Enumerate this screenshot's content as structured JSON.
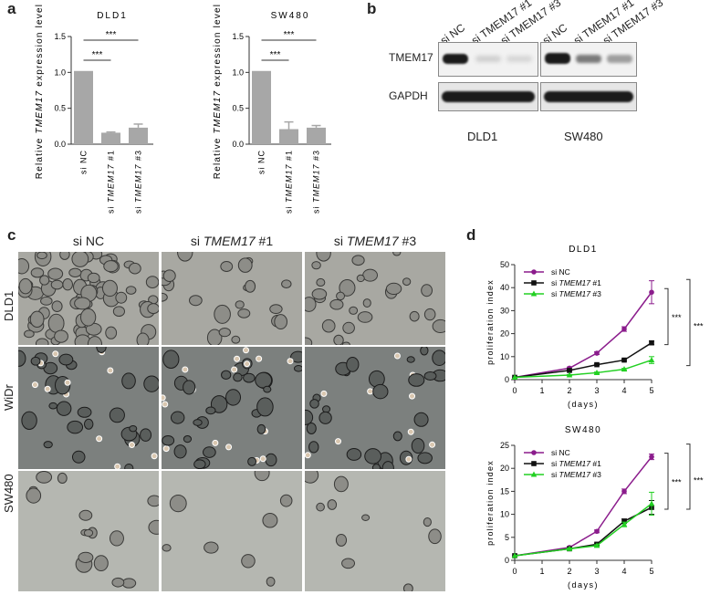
{
  "panel_letters": {
    "a": "a",
    "b": "b",
    "c": "c",
    "d": "d"
  },
  "panel_a": {
    "ylabel_prefix": "Relative ",
    "ylabel_gene": "TMEM17",
    "ylabel_suffix": " expression level",
    "sig": "***",
    "charts": [
      {
        "title": "DLD1"
      },
      {
        "title": "SW480"
      }
    ]
  },
  "panel_b": {
    "lane_labels": [
      "si NC",
      "si TMEM17 #1",
      "si TMEM17 #3"
    ],
    "row_labels": [
      "TMEM17",
      "GAPDH"
    ],
    "cell_lines": [
      "DLD1",
      "SW480"
    ]
  },
  "panel_c": {
    "columns": [
      {
        "prefix": "si ",
        "gene": "",
        "suffix": "NC"
      },
      {
        "prefix": "si ",
        "gene": "TMEM17",
        "suffix": " #1"
      },
      {
        "prefix": "si ",
        "gene": "TMEM17",
        "suffix": " #3"
      }
    ],
    "rows": [
      "DLD1",
      "WiDr",
      "SW480"
    ],
    "colors": {
      "dld1_bg": "#a8a8a2",
      "widr_bg": "#7c807e",
      "sw480_bg": "#b5b7b1"
    }
  },
  "panel_d": {
    "ylabel": "proliferation index",
    "xlabel": "(days)",
    "sig": "***",
    "legend": [
      {
        "prefix": "si ",
        "gene": "",
        "suffix": "NC"
      },
      {
        "prefix": "si ",
        "gene": "TMEM17",
        "suffix": " #1"
      },
      {
        "prefix": "si ",
        "gene": "TMEM17",
        "suffix": " #3"
      }
    ]
  },
  "chart_data": [
    {
      "type": "bar",
      "title": "DLD1",
      "categories": [
        "si NC",
        "si TMEM17 #1",
        "si TMEM17 #3"
      ],
      "values": [
        1.02,
        0.16,
        0.23
      ],
      "errors": [
        0,
        0.01,
        0.05
      ],
      "ylim": [
        0,
        1.5
      ],
      "yticks": [
        "0.0",
        "0.5",
        "1.0",
        "1.5"
      ],
      "color": "#a7a7a7"
    },
    {
      "type": "bar",
      "title": "SW480",
      "categories": [
        "si NC",
        "si TMEM17 #1",
        "si TMEM17 #3"
      ],
      "values": [
        1.02,
        0.21,
        0.23
      ],
      "errors": [
        0,
        0.1,
        0.03
      ],
      "ylim": [
        0,
        1.5
      ],
      "yticks": [
        "0.0",
        "0.5",
        "1.0",
        "1.5"
      ],
      "color": "#a7a7a7"
    },
    {
      "type": "line",
      "title": "DLD1",
      "x": [
        0,
        2,
        3,
        4,
        5
      ],
      "xticks": [
        "0",
        "1",
        "2",
        "3",
        "4",
        "5"
      ],
      "ylim": [
        0,
        50
      ],
      "yticks": [
        "0",
        "10",
        "20",
        "30",
        "40",
        "50"
      ],
      "series": [
        {
          "name": "si NC",
          "values": [
            1,
            5,
            11.5,
            22,
            38
          ],
          "errors": [
            0,
            0.5,
            0.6,
            1,
            5
          ],
          "color": "#8b1c8c",
          "marker": "circle"
        },
        {
          "name": "si TMEM17 #1",
          "values": [
            1,
            4,
            6.5,
            8.5,
            16
          ],
          "errors": [
            0,
            0.3,
            0.3,
            0.4,
            0.8
          ],
          "color": "#111111",
          "marker": "square"
        },
        {
          "name": "si TMEM17 #3",
          "values": [
            1,
            2,
            3,
            4.5,
            8.5
          ],
          "errors": [
            0,
            0.2,
            0.3,
            0.4,
            1.5
          ],
          "color": "#22d022",
          "marker": "triangle"
        }
      ]
    },
    {
      "type": "line",
      "title": "SW480",
      "x": [
        0,
        2,
        3,
        4,
        5
      ],
      "xticks": [
        "0",
        "1",
        "2",
        "3",
        "4",
        "5"
      ],
      "ylim": [
        0,
        25
      ],
      "yticks": [
        "0",
        "5",
        "10",
        "15",
        "20",
        "25"
      ],
      "series": [
        {
          "name": "si NC",
          "values": [
            1,
            2.8,
            6.3,
            15,
            22.5
          ],
          "errors": [
            0,
            0.2,
            0.3,
            0.5,
            0.6
          ],
          "color": "#8b1c8c",
          "marker": "circle"
        },
        {
          "name": "si TMEM17 #1",
          "values": [
            1,
            2.5,
            3.5,
            8.5,
            11.5
          ],
          "errors": [
            0,
            0.2,
            0.2,
            0.5,
            1.5
          ],
          "color": "#111111",
          "marker": "square"
        },
        {
          "name": "si TMEM17 #3",
          "values": [
            1,
            2.5,
            3.2,
            7.8,
            12.3
          ],
          "errors": [
            0,
            0.2,
            0.2,
            0.5,
            2.5
          ],
          "color": "#22d022",
          "marker": "triangle"
        }
      ]
    }
  ]
}
